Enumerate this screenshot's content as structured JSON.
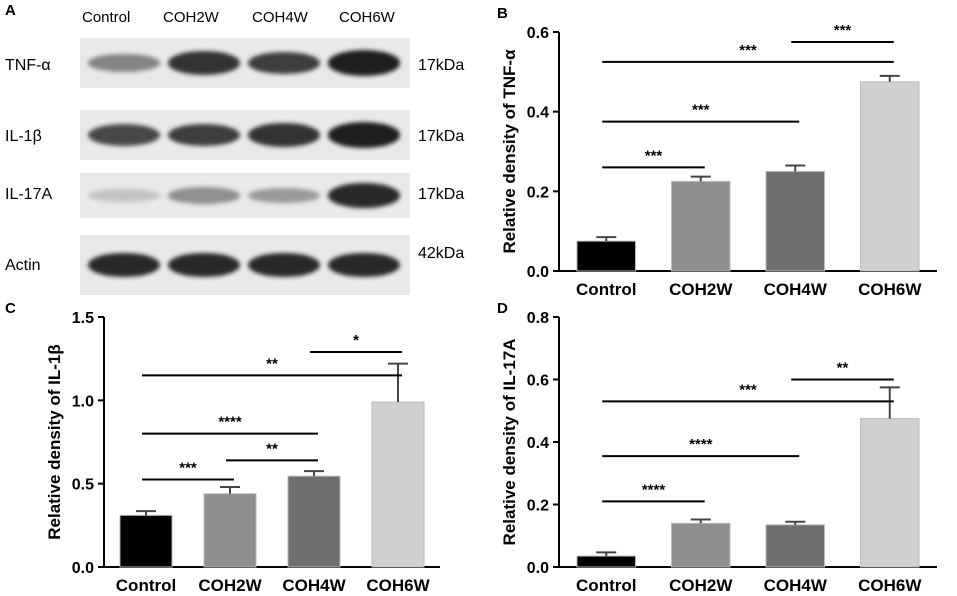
{
  "panel_a": {
    "letter": "A",
    "columns": [
      "Control",
      "COH2W",
      "COH4W",
      "COH6W"
    ],
    "rows": [
      {
        "label": "TNF-α",
        "kda": "17kDa",
        "intensity": [
          0.45,
          0.85,
          0.8,
          0.95
        ]
      },
      {
        "label": "IL-1β",
        "kda": "17kDa",
        "intensity": [
          0.75,
          0.8,
          0.85,
          0.95
        ]
      },
      {
        "label": "IL-17A",
        "kda": "17kDa",
        "intensity": [
          0.15,
          0.4,
          0.35,
          0.9
        ]
      },
      {
        "label": "Actin",
        "kda": "42kDa",
        "intensity": [
          0.9,
          0.9,
          0.9,
          0.9
        ]
      }
    ]
  },
  "chart_data": [
    {
      "letter": "B",
      "type": "bar",
      "categories": [
        "Control",
        "COH2W",
        "COH4W",
        "COH6W"
      ],
      "values": [
        0.075,
        0.225,
        0.25,
        0.475
      ],
      "errors": [
        0.01,
        0.012,
        0.015,
        0.015
      ],
      "ylabel": "Relative density of TNF-α",
      "ylim": [
        0,
        0.6
      ],
      "yticks": [
        "0.0",
        "0.2",
        "0.4",
        "0.6"
      ],
      "colors": [
        "#000000",
        "#8f8f8f",
        "#6e6e6e",
        "#cfcfcf"
      ],
      "significance": [
        {
          "from": 0,
          "to": 1,
          "level": 0.26,
          "label": "***"
        },
        {
          "from": 0,
          "to": 2,
          "level": 0.375,
          "label": "***"
        },
        {
          "from": 0,
          "to": 3,
          "level": 0.525,
          "label": "***"
        },
        {
          "from": 2,
          "to": 3,
          "level": 0.575,
          "label": "***"
        }
      ]
    },
    {
      "letter": "C",
      "type": "bar",
      "categories": [
        "Control",
        "COH2W",
        "COH4W",
        "COH6W"
      ],
      "values": [
        0.31,
        0.44,
        0.545,
        0.99
      ],
      "errors": [
        0.025,
        0.04,
        0.03,
        0.23
      ],
      "ylabel": "Relative density of IL-1β",
      "ylim": [
        0,
        1.5
      ],
      "yticks": [
        "0.0",
        "0.5",
        "1.0",
        "1.5"
      ],
      "colors": [
        "#000000",
        "#8f8f8f",
        "#6e6e6e",
        "#cfcfcf"
      ],
      "significance": [
        {
          "from": 0,
          "to": 1,
          "level": 0.525,
          "label": "***"
        },
        {
          "from": 1,
          "to": 2,
          "level": 0.64,
          "label": "**"
        },
        {
          "from": 0,
          "to": 2,
          "level": 0.8,
          "label": "****"
        },
        {
          "from": 0,
          "to": 3,
          "level": 1.15,
          "label": "**"
        },
        {
          "from": 2,
          "to": 3,
          "level": 1.29,
          "label": "*"
        }
      ]
    },
    {
      "letter": "D",
      "type": "bar",
      "categories": [
        "Control",
        "COH2W",
        "COH4W",
        "COH6W"
      ],
      "values": [
        0.035,
        0.14,
        0.135,
        0.475
      ],
      "errors": [
        0.012,
        0.012,
        0.01,
        0.1
      ],
      "ylabel": "Relative density of IL-17A",
      "ylim": [
        0,
        0.8
      ],
      "yticks": [
        "0.0",
        "0.2",
        "0.4",
        "0.6",
        "0.8"
      ],
      "colors": [
        "#000000",
        "#8f8f8f",
        "#6e6e6e",
        "#cfcfcf"
      ],
      "significance": [
        {
          "from": 0,
          "to": 1,
          "level": 0.21,
          "label": "****"
        },
        {
          "from": 0,
          "to": 2,
          "level": 0.355,
          "label": "****"
        },
        {
          "from": 0,
          "to": 3,
          "level": 0.53,
          "label": "***"
        },
        {
          "from": 2,
          "to": 3,
          "level": 0.6,
          "label": "**"
        }
      ]
    }
  ]
}
